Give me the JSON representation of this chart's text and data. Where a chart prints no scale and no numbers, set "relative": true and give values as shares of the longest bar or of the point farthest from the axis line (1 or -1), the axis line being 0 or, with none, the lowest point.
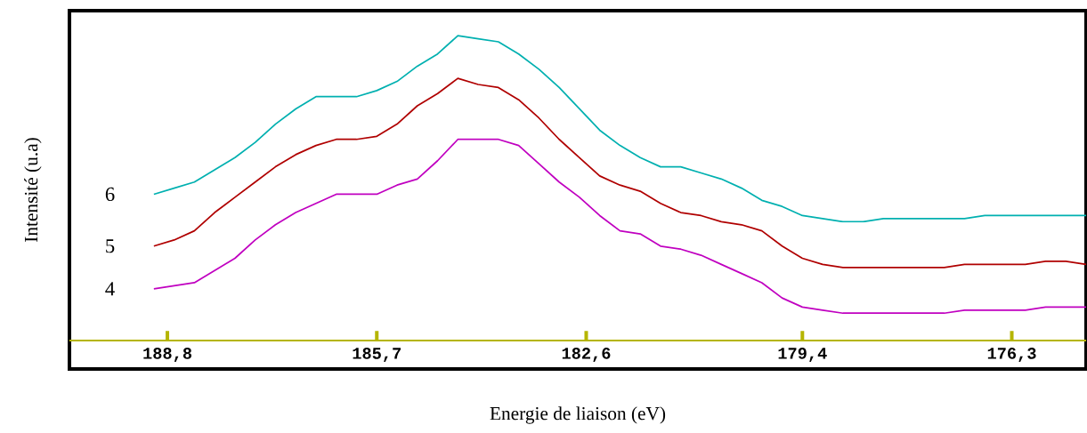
{
  "chart_data": {
    "type": "line",
    "xlabel": "Energie de liaison (eV)",
    "ylabel": "Intensité (u.a)",
    "relative": true,
    "xlim": [
      190.25,
      175.2
    ],
    "xticks": [
      {
        "value": 188.8,
        "label": "188,8"
      },
      {
        "value": 185.7,
        "label": "185,7"
      },
      {
        "value": 182.6,
        "label": "182,6"
      },
      {
        "value": 179.4,
        "label": "179,4"
      },
      {
        "value": 176.3,
        "label": "176,3"
      }
    ],
    "x": [
      189.0,
      188.7,
      188.4,
      188.1,
      187.8,
      187.5,
      187.2,
      186.9,
      186.6,
      186.3,
      186.0,
      185.7,
      185.4,
      185.1,
      184.8,
      184.5,
      184.2,
      183.9,
      183.6,
      183.3,
      183.0,
      182.7,
      182.4,
      182.1,
      181.8,
      181.5,
      181.2,
      180.9,
      180.6,
      180.3,
      180.0,
      179.7,
      179.4,
      179.1,
      178.8,
      178.5,
      178.2,
      177.9,
      177.6,
      177.3,
      177.0,
      176.7,
      176.4,
      176.1,
      175.8,
      175.5,
      175.2
    ],
    "series": [
      {
        "name": "6",
        "color": "#00b0b0",
        "values": [
          0.48,
          0.5,
          0.52,
          0.56,
          0.6,
          0.65,
          0.71,
          0.76,
          0.8,
          0.8,
          0.8,
          0.82,
          0.85,
          0.9,
          0.94,
          1.0,
          0.99,
          0.98,
          0.94,
          0.89,
          0.83,
          0.76,
          0.69,
          0.64,
          0.6,
          0.57,
          0.57,
          0.55,
          0.53,
          0.5,
          0.46,
          0.44,
          0.41,
          0.4,
          0.39,
          0.39,
          0.4,
          0.4,
          0.4,
          0.4,
          0.4,
          0.41,
          0.41,
          0.41,
          0.41,
          0.41,
          0.41
        ]
      },
      {
        "name": "5",
        "color": "#b00000",
        "values": [
          0.31,
          0.33,
          0.36,
          0.42,
          0.47,
          0.52,
          0.57,
          0.61,
          0.64,
          0.66,
          0.66,
          0.67,
          0.71,
          0.77,
          0.81,
          0.86,
          0.84,
          0.83,
          0.79,
          0.73,
          0.66,
          0.6,
          0.54,
          0.51,
          0.49,
          0.45,
          0.42,
          0.41,
          0.39,
          0.38,
          0.36,
          0.31,
          0.27,
          0.25,
          0.24,
          0.24,
          0.24,
          0.24,
          0.24,
          0.24,
          0.25,
          0.25,
          0.25,
          0.25,
          0.26,
          0.26,
          0.25
        ]
      },
      {
        "name": "4",
        "color": "#c000c0",
        "values": [
          0.17,
          0.18,
          0.19,
          0.23,
          0.27,
          0.33,
          0.38,
          0.42,
          0.45,
          0.48,
          0.48,
          0.48,
          0.51,
          0.53,
          0.59,
          0.66,
          0.66,
          0.66,
          0.64,
          0.58,
          0.52,
          0.47,
          0.41,
          0.36,
          0.35,
          0.31,
          0.3,
          0.28,
          0.25,
          0.22,
          0.19,
          0.14,
          0.11,
          0.1,
          0.09,
          0.09,
          0.09,
          0.09,
          0.09,
          0.09,
          0.1,
          0.1,
          0.1,
          0.1,
          0.11,
          0.11,
          0.11
        ]
      }
    ]
  }
}
